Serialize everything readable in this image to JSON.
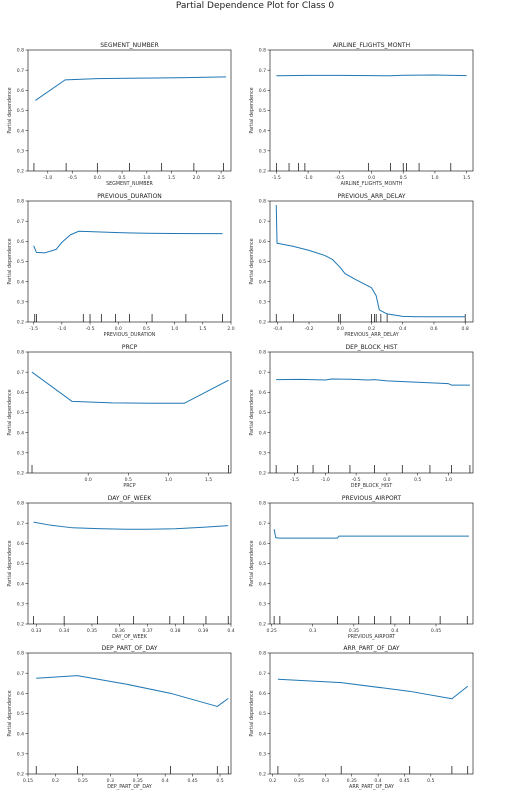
{
  "title": "Partial Dependence Plot for Class 0",
  "chart_data": [
    {
      "type": "line",
      "title": "SEGMENT_NUMBER",
      "xlabel": "SEGMENT_NUMBER",
      "ylabel": "Partial dependence",
      "xlim": [
        -1.4,
        2.7
      ],
      "ylim": [
        0.2,
        0.8
      ],
      "xticks": [
        -1.0,
        -0.5,
        0.0,
        0.5,
        1.0,
        1.5,
        2.0,
        2.5
      ],
      "yticks": [
        0.2,
        0.3,
        0.4,
        0.5,
        0.6,
        0.7,
        0.8
      ],
      "x": [
        -1.25,
        -0.65,
        0.0,
        0.6,
        1.2,
        1.8,
        2.6
      ],
      "y": [
        0.55,
        0.652,
        0.658,
        0.66,
        0.661,
        0.663,
        0.667
      ],
      "rug": [
        -1.28,
        -0.63,
        0.0,
        0.65,
        1.3,
        1.95,
        2.55
      ]
    },
    {
      "type": "line",
      "title": "AIRLINE_FLIGHTS_MONTH",
      "xlabel": "AIRLINE_FLIGHTS_MONTH",
      "ylabel": "Partial dependence",
      "xlim": [
        -1.6,
        1.6
      ],
      "ylim": [
        0.2,
        0.8
      ],
      "xticks": [
        -1.5,
        -1.0,
        -0.5,
        0.0,
        0.5,
        1.0,
        1.5
      ],
      "yticks": [
        0.2,
        0.3,
        0.4,
        0.5,
        0.6,
        0.7,
        0.8
      ],
      "x": [
        -1.5,
        -1.0,
        -0.5,
        0.0,
        0.3,
        0.5,
        1.0,
        1.5
      ],
      "y": [
        0.672,
        0.674,
        0.674,
        0.673,
        0.672,
        0.675,
        0.676,
        0.673
      ],
      "rug": [
        -1.5,
        -1.3,
        -1.15,
        -1.05,
        -0.05,
        0.3,
        0.5,
        0.55,
        0.75,
        1.25
      ]
    },
    {
      "type": "line",
      "title": "PREVIOUS_DURATION",
      "xlabel": "PREVIOUS_DURATION",
      "ylabel": "Partial dependence",
      "xlim": [
        -1.6,
        2.0
      ],
      "ylim": [
        0.2,
        0.8
      ],
      "xticks": [
        -1.5,
        -1.0,
        -0.5,
        0.0,
        0.5,
        1.0,
        1.5,
        2.0
      ],
      "yticks": [
        0.2,
        0.3,
        0.4,
        0.5,
        0.6,
        0.7,
        0.8
      ],
      "x": [
        -1.5,
        -1.45,
        -1.3,
        -1.1,
        -1.0,
        -0.85,
        -0.7,
        -0.5,
        0.0,
        0.5,
        1.0,
        1.5,
        1.85
      ],
      "y": [
        0.578,
        0.545,
        0.543,
        0.56,
        0.595,
        0.632,
        0.65,
        0.648,
        0.643,
        0.64,
        0.639,
        0.638,
        0.638
      ],
      "rug": [
        -1.48,
        -1.45,
        -0.62,
        -0.5,
        -0.3,
        -0.05,
        0.2,
        0.6,
        1.2,
        1.85
      ]
    },
    {
      "type": "line",
      "title": "PREVIOUS_ARR_DELAY",
      "xlabel": "PREVIOUS_ARR_DELAY",
      "ylabel": "Partial dependence",
      "xlim": [
        -0.45,
        0.85
      ],
      "ylim": [
        0.2,
        0.8
      ],
      "xticks": [
        -0.4,
        -0.2,
        0.0,
        0.2,
        0.4,
        0.6,
        0.8
      ],
      "yticks": [
        0.2,
        0.3,
        0.4,
        0.5,
        0.6,
        0.7,
        0.8
      ],
      "x": [
        -0.41,
        -0.405,
        -0.4,
        -0.3,
        -0.2,
        -0.1,
        -0.05,
        0.0,
        0.03,
        0.1,
        0.15,
        0.2,
        0.23,
        0.25,
        0.3,
        0.4,
        0.5,
        0.6,
        0.7,
        0.8
      ],
      "y": [
        0.78,
        0.59,
        0.59,
        0.575,
        0.555,
        0.53,
        0.51,
        0.47,
        0.44,
        0.41,
        0.39,
        0.37,
        0.33,
        0.26,
        0.24,
        0.228,
        0.226,
        0.226,
        0.226,
        0.226
      ],
      "rug": [
        -0.41,
        -0.3,
        -0.01,
        0.0,
        0.2,
        0.22,
        0.23,
        0.26,
        0.3,
        0.8
      ]
    },
    {
      "type": "line",
      "title": "PRCP",
      "xlabel": "PRCP",
      "ylabel": "Partial dependence",
      "xlim": [
        -0.75,
        1.78
      ],
      "ylim": [
        0.2,
        0.8
      ],
      "xticks": [
        0.0,
        0.5,
        1.0,
        1.5
      ],
      "yticks": [
        0.2,
        0.3,
        0.4,
        0.5,
        0.6,
        0.7,
        0.8
      ],
      "x": [
        -0.7,
        -0.2,
        0.3,
        0.8,
        1.2,
        1.75
      ],
      "y": [
        0.7,
        0.555,
        0.548,
        0.546,
        0.546,
        0.66
      ],
      "rug": [
        -0.7,
        1.75
      ]
    },
    {
      "type": "line",
      "title": "DEP_BLOCK_HIST",
      "xlabel": "DEP_BLOCK_HIST",
      "ylabel": "Partial dependence",
      "xlim": [
        -1.9,
        1.4
      ],
      "ylim": [
        0.2,
        0.8
      ],
      "xticks": [
        -1.5,
        -1.0,
        -0.5,
        0.0,
        0.5,
        1.0
      ],
      "yticks": [
        0.2,
        0.3,
        0.4,
        0.5,
        0.6,
        0.7,
        0.8
      ],
      "x": [
        -1.8,
        -1.4,
        -1.0,
        -0.9,
        -0.6,
        -0.3,
        -0.2,
        0.0,
        0.5,
        1.0,
        1.05,
        1.35
      ],
      "y": [
        0.663,
        0.664,
        0.661,
        0.666,
        0.665,
        0.661,
        0.663,
        0.657,
        0.65,
        0.643,
        0.636,
        0.636
      ],
      "rug": [
        -1.8,
        -1.45,
        -1.2,
        -0.95,
        -0.6,
        -0.2,
        0.25,
        0.7,
        1.05,
        1.35
      ]
    },
    {
      "type": "line",
      "title": "DAY_OF_WEEK",
      "xlabel": "DAY_OF_WEEK",
      "ylabel": "Partial dependence",
      "xlim": [
        0.327,
        0.4
      ],
      "ylim": [
        0.2,
        0.8
      ],
      "xticks": [
        0.33,
        0.34,
        0.35,
        0.36,
        0.37,
        0.38,
        0.39,
        0.4
      ],
      "yticks": [
        0.2,
        0.3,
        0.4,
        0.5,
        0.6,
        0.7,
        0.8
      ],
      "x": [
        0.329,
        0.335,
        0.343,
        0.352,
        0.362,
        0.37,
        0.38,
        0.39,
        0.399
      ],
      "y": [
        0.705,
        0.69,
        0.677,
        0.673,
        0.67,
        0.67,
        0.672,
        0.68,
        0.688
      ],
      "rug": [
        0.329,
        0.34,
        0.352,
        0.365,
        0.378,
        0.383,
        0.391,
        0.399
      ]
    },
    {
      "type": "line",
      "title": "PREVIOUS_AIRPORT",
      "xlabel": "PREVIOUS_AIRPORT",
      "ylabel": "Partial dependence",
      "xlim": [
        0.248,
        0.495
      ],
      "ylim": [
        0.2,
        0.8
      ],
      "xticks": [
        0.25,
        0.3,
        0.35,
        0.4,
        0.45
      ],
      "yticks": [
        0.2,
        0.3,
        0.4,
        0.5,
        0.6,
        0.7,
        0.8
      ],
      "x": [
        0.253,
        0.255,
        0.26,
        0.3,
        0.33,
        0.332,
        0.35,
        0.4,
        0.45,
        0.49
      ],
      "y": [
        0.67,
        0.628,
        0.626,
        0.626,
        0.626,
        0.636,
        0.636,
        0.636,
        0.636,
        0.636
      ],
      "rug": [
        0.253,
        0.26,
        0.33,
        0.356,
        0.375,
        0.395,
        0.418,
        0.455,
        0.488
      ]
    },
    {
      "type": "line",
      "title": "DEP_PART_OF_DAY",
      "xlabel": "DEP_PART_OF_DAY",
      "ylabel": "Partial dependence",
      "xlim": [
        0.15,
        0.52
      ],
      "ylim": [
        0.2,
        0.8
      ],
      "xticks": [
        0.15,
        0.2,
        0.25,
        0.3,
        0.35,
        0.4,
        0.45,
        0.5
      ],
      "yticks": [
        0.2,
        0.3,
        0.4,
        0.5,
        0.6,
        0.7,
        0.8
      ],
      "x": [
        0.165,
        0.24,
        0.33,
        0.41,
        0.495,
        0.515
      ],
      "y": [
        0.675,
        0.688,
        0.645,
        0.6,
        0.535,
        0.575
      ],
      "rug": [
        0.165,
        0.24,
        0.41,
        0.495,
        0.515
      ]
    },
    {
      "type": "line",
      "title": "ARR_PART_OF_DAY",
      "xlabel": "ARR_PART_OF_DAY",
      "ylabel": "Partial dependence",
      "xlim": [
        0.195,
        0.58
      ],
      "ylim": [
        0.2,
        0.8
      ],
      "xticks": [
        0.2,
        0.25,
        0.3,
        0.35,
        0.4,
        0.45,
        0.5
      ],
      "yticks": [
        0.2,
        0.3,
        0.4,
        0.5,
        0.6,
        0.7,
        0.8
      ],
      "x": [
        0.21,
        0.33,
        0.46,
        0.54,
        0.57
      ],
      "y": [
        0.67,
        0.653,
        0.61,
        0.573,
        0.635
      ],
      "rug": [
        0.21,
        0.33,
        0.46,
        0.54,
        0.57
      ]
    }
  ]
}
